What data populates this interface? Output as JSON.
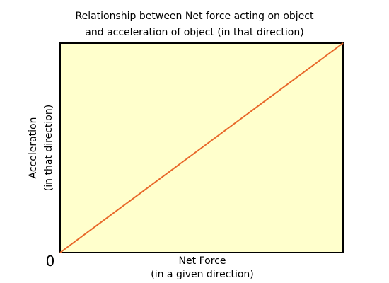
{
  "chart_data": {
    "type": "line",
    "title_lines": [
      "Relationship between Net force acting on object",
      "and acceleration of object (in that direction)"
    ],
    "xlabel_lines": [
      "Net Force",
      "(in a given direction)"
    ],
    "ylabel_lines": [
      "Acceleration",
      "(in that direction)"
    ],
    "origin_label": "0",
    "x": [
      0,
      1
    ],
    "series": [
      {
        "values": [
          0,
          1
        ]
      }
    ],
    "xlim": [
      0,
      1
    ],
    "ylim": [
      0,
      1
    ],
    "grid": false,
    "legend": "none",
    "colors": {
      "plot_background": "#ffffcc",
      "frame": "#000000",
      "line": "#e8682a"
    }
  }
}
